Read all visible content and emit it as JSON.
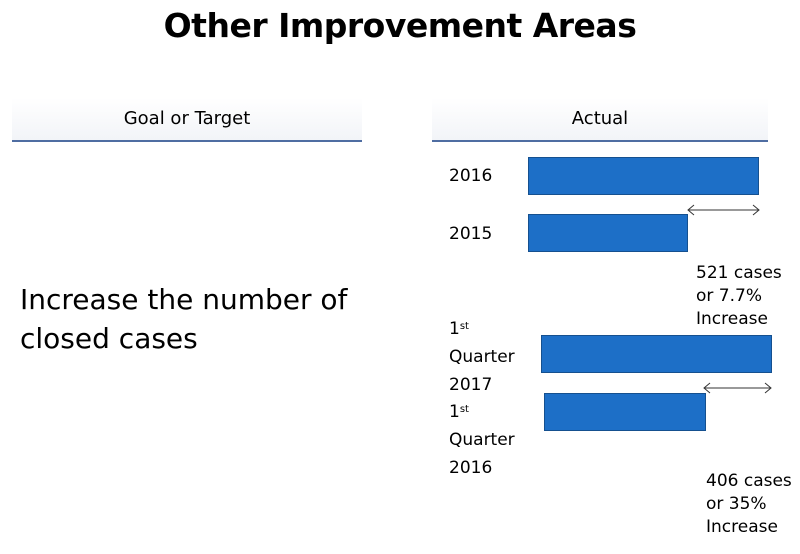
{
  "slide": {
    "title": "Other Improvement Areas",
    "goal_header": "Goal or Target",
    "actual_header": "Actual",
    "goal_text": "Increase the number of closed cases"
  },
  "annual": {
    "rows": [
      {
        "label": "2016",
        "value_label": ""
      },
      {
        "label": "2015",
        "value_label": ""
      }
    ],
    "difference": "521 cases or 7.7% Increase",
    "diff_lines": [
      "521 cases",
      "or 7.7%",
      "Increase"
    ]
  },
  "quarterly": {
    "rows": [
      {
        "label_sup_prefix": "1",
        "label_sup": "st",
        "label_rest_1": "Quarter",
        "label_rest_2": "2017"
      },
      {
        "label_sup_prefix": "1",
        "label_sup": "st",
        "label_rest_1": "Quarter",
        "label_rest_2": "2016"
      }
    ],
    "diff_lines": [
      "406 cases",
      "or 35%",
      "Increase"
    ]
  },
  "colors": {
    "bar": "#1d6fc7",
    "rule": "#4f6da2"
  }
}
